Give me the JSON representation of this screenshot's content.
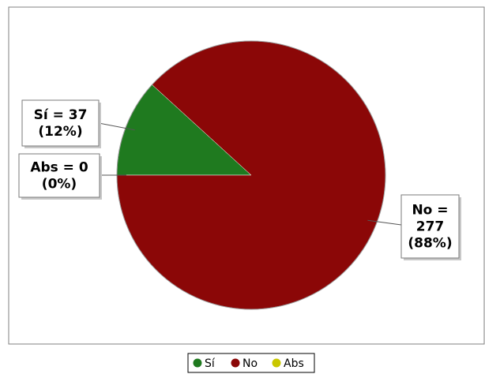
{
  "chart_data": {
    "type": "pie",
    "title": "",
    "slices": [
      {
        "label": "Sí",
        "value": 37,
        "percent": 12,
        "color": "#1f7a1f"
      },
      {
        "label": "No",
        "value": 277,
        "percent": 88,
        "color": "#8b0707"
      },
      {
        "label": "Abs",
        "value": 0,
        "percent": 0,
        "color": "#c9c700"
      }
    ],
    "callouts": [
      {
        "lines": [
          "Sí = 37",
          "(12%)"
        ]
      },
      {
        "lines": [
          "No =",
          "277",
          "(88%)"
        ]
      },
      {
        "lines": [
          "Abs = 0",
          "(0%)"
        ]
      }
    ],
    "legend": {
      "placement": "bottom-center",
      "items": [
        "Sí",
        "No",
        "Abs"
      ]
    },
    "grid": false
  }
}
